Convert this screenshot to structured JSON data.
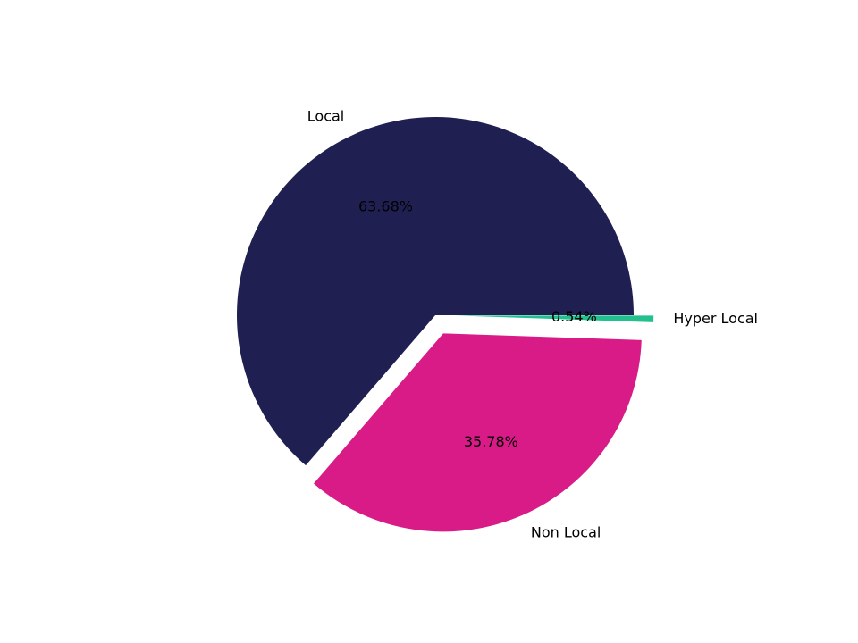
{
  "chart_data": {
    "type": "pie",
    "categories": [
      "Local",
      "Non Local",
      "Hyper Local"
    ],
    "values": [
      63.68,
      35.78,
      0.54
    ],
    "value_labels": [
      "63.68%",
      "35.78%",
      "0.54%"
    ],
    "colors": [
      "#1f1f52",
      "#d81b87",
      "#21c08e"
    ],
    "explode": [
      0,
      0.1,
      0.1
    ]
  }
}
